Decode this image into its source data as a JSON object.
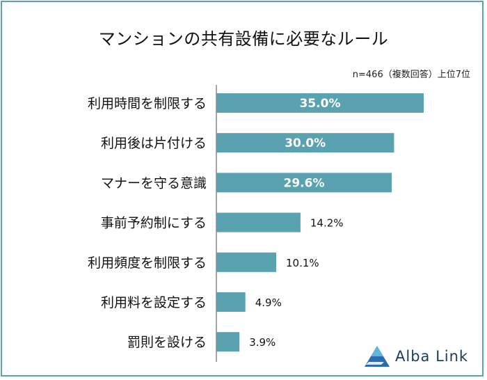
{
  "title": "マンションの共有設備に必要なルール",
  "note": "n=466（複数回答）上位7位",
  "brand": {
    "name": "Alba Link",
    "icon": "triangle-logo-icon"
  },
  "colors": {
    "bar": "#5aa2b0",
    "frame": "#5aa2b0",
    "axis": "#888888",
    "text": "#111111"
  },
  "chart_data": {
    "type": "bar",
    "orientation": "horizontal",
    "title": "マンションの共有設備に必要なルール",
    "categories": [
      "利用時間を制限する",
      "利用後は片付ける",
      "マナーを守る意識",
      "事前予約制にする",
      "利用頻度を制限する",
      "利用料を設定する",
      "罰則を設ける"
    ],
    "values": [
      35.0,
      30.0,
      29.6,
      14.2,
      10.1,
      4.9,
      3.9
    ],
    "labels": [
      "35.0%",
      "30.0%",
      "29.6%",
      "14.2%",
      "10.1%",
      "4.9%",
      "3.9%"
    ],
    "unit": "%",
    "xlim": [
      0,
      35
    ],
    "grid": false,
    "legend": "none",
    "xlabel": "",
    "ylabel": ""
  }
}
